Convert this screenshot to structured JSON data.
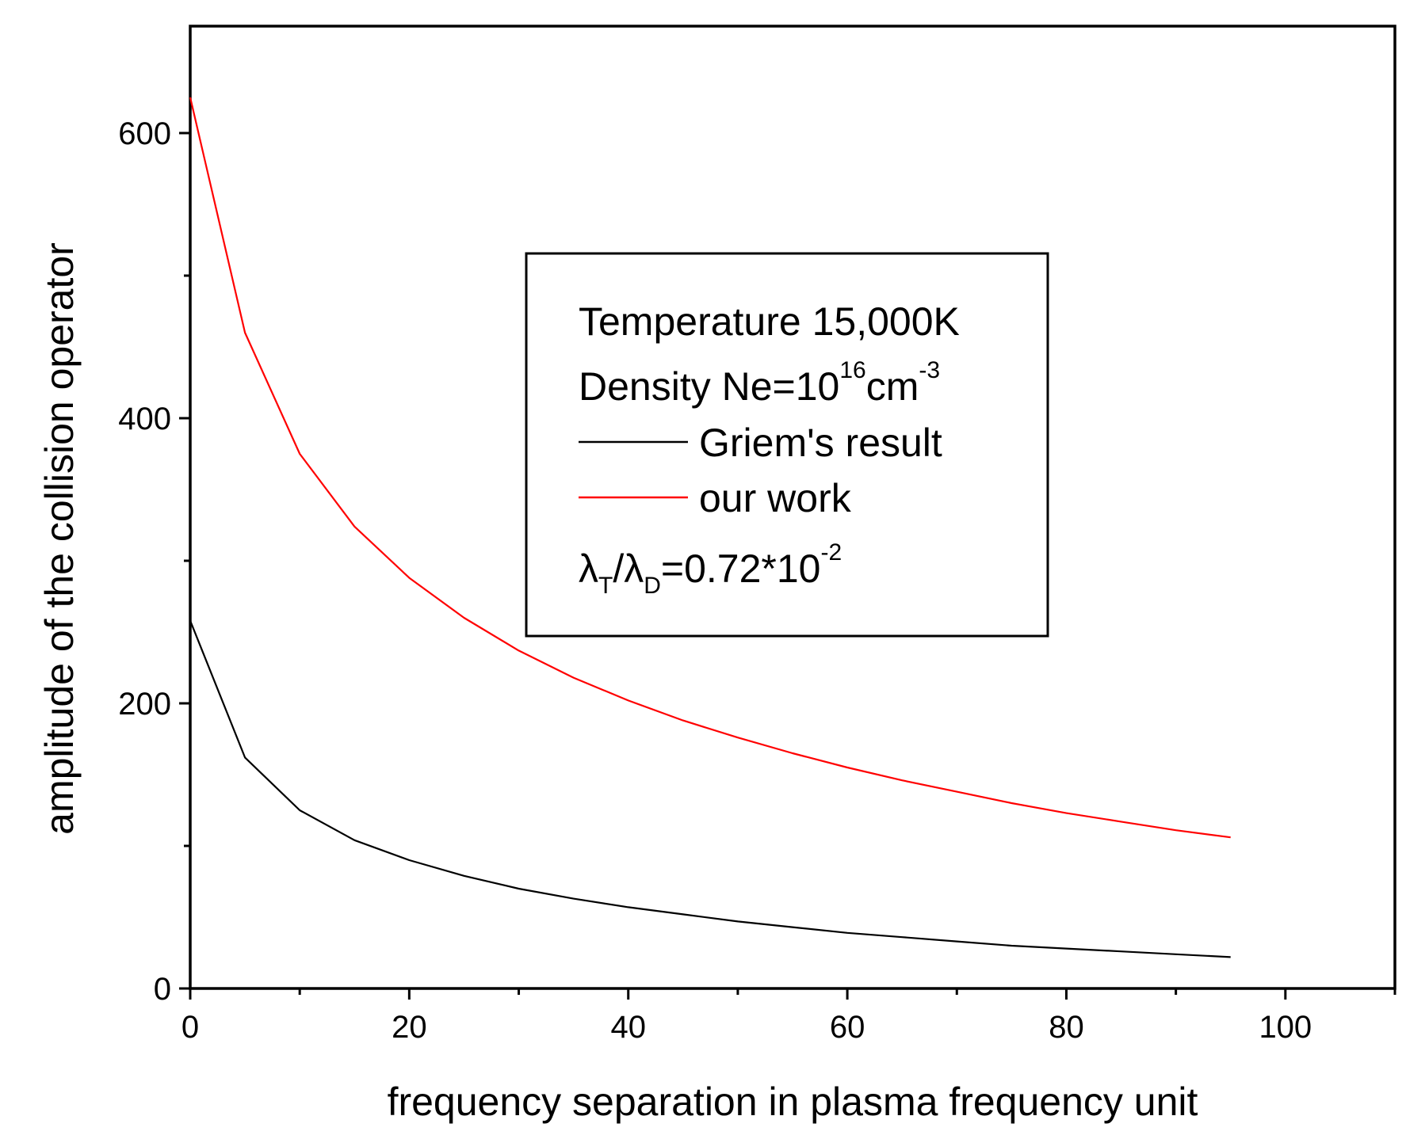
{
  "chart_data": {
    "type": "line",
    "title": "",
    "xlabel": "frequency separation in plasma frequency unit",
    "ylabel": "amplitude of the collision operator",
    "xlim": [
      0,
      110
    ],
    "ylim": [
      0,
      675
    ],
    "x_ticks": [
      0,
      20,
      40,
      60,
      80,
      100
    ],
    "x_tick_labels": [
      "0",
      "20",
      "40",
      "60",
      "80",
      "100"
    ],
    "x_minor_ticks": [
      10,
      30,
      50,
      70,
      90,
      110
    ],
    "y_ticks": [
      0,
      200,
      400,
      600
    ],
    "y_tick_labels": [
      "0",
      "200",
      "400",
      "600"
    ],
    "y_minor_ticks": [
      100,
      300,
      500
    ],
    "grid": false,
    "legend_position": "center",
    "legend": {
      "temperature": "Temperature 15,000K",
      "density_prefix": "Density Ne=10",
      "density_exp": "16",
      "density_unit": "cm",
      "density_unit_exp": "-3",
      "ratio_lambda1": "λ",
      "ratio_sub1": "T",
      "ratio_slash": "/",
      "ratio_lambda2": "λ",
      "ratio_sub2": "D",
      "ratio_value": "=0.72*10",
      "ratio_exp": "-2"
    },
    "series": [
      {
        "name": "Griem's result",
        "color": "#000000",
        "x": [
          0,
          5,
          10,
          15,
          20,
          25,
          30,
          35,
          40,
          45,
          50,
          55,
          60,
          65,
          70,
          75,
          80,
          85,
          90,
          95
        ],
        "values": [
          258,
          162,
          125,
          104,
          90,
          79,
          70,
          63,
          57,
          52,
          47,
          43,
          39,
          36,
          33,
          30,
          28,
          26,
          24,
          22
        ]
      },
      {
        "name": "our work",
        "color": "#ff0000",
        "x": [
          0,
          5,
          10,
          15,
          20,
          25,
          30,
          35,
          40,
          45,
          50,
          55,
          60,
          65,
          70,
          75,
          80,
          85,
          90,
          95
        ],
        "values": [
          625,
          460,
          375,
          324,
          288,
          260,
          237,
          218,
          202,
          188,
          176,
          165,
          155,
          146,
          138,
          130,
          123,
          117,
          111,
          106
        ]
      }
    ]
  }
}
